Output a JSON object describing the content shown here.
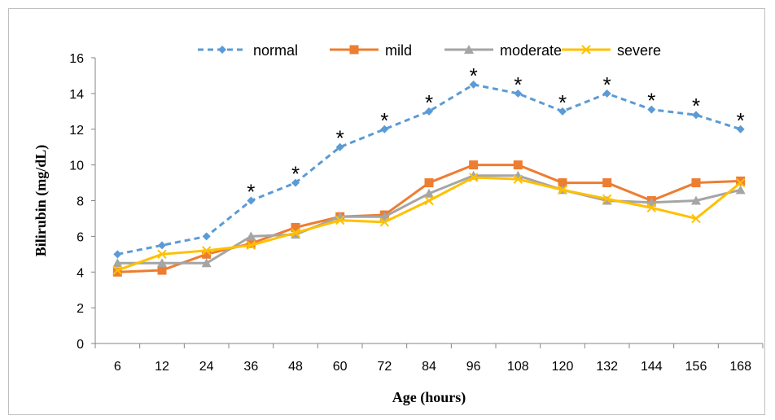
{
  "chart_data": {
    "type": "line",
    "x": [
      "6",
      "12",
      "24",
      "36",
      "48",
      "60",
      "72",
      "84",
      "96",
      "108",
      "120",
      "132",
      "144",
      "156",
      "168"
    ],
    "xlabel": "Age (hours)",
    "ylabel": "Bilirubin (mg/dL)",
    "ylim": [
      0,
      16
    ],
    "yticks": [
      0,
      2,
      4,
      6,
      8,
      10,
      12,
      14,
      16
    ],
    "grid": false,
    "legend_position": "top",
    "series": [
      {
        "name": "normal",
        "color": "#5b9bd5",
        "marker": "diamond",
        "dash": true,
        "values": [
          5.0,
          5.5,
          6.0,
          8.0,
          9.0,
          11.0,
          12.0,
          13.0,
          14.5,
          14.0,
          13.0,
          14.0,
          13.1,
          12.8,
          12.0
        ]
      },
      {
        "name": "mild",
        "color": "#ed7d31",
        "marker": "square",
        "dash": false,
        "values": [
          4.0,
          4.1,
          5.0,
          5.6,
          6.5,
          7.1,
          7.2,
          9.0,
          10.0,
          10.0,
          9.0,
          9.0,
          8.0,
          9.0,
          9.1
        ]
      },
      {
        "name": "moderate",
        "color": "#a5a5a5",
        "marker": "triangle",
        "dash": false,
        "values": [
          4.5,
          4.5,
          4.5,
          6.0,
          6.1,
          7.1,
          7.1,
          8.4,
          9.4,
          9.4,
          8.6,
          8.0,
          7.9,
          8.0,
          8.6
        ]
      },
      {
        "name": "severe",
        "color": "#ffc000",
        "marker": "x",
        "dash": false,
        "values": [
          4.1,
          5.0,
          5.2,
          5.5,
          6.2,
          6.9,
          6.8,
          8.0,
          9.3,
          9.2,
          8.6,
          8.1,
          7.6,
          7.0,
          9.0
        ]
      }
    ],
    "annotations": [
      {
        "text": "*",
        "x": "36"
      },
      {
        "text": "*",
        "x": "48"
      },
      {
        "text": "*",
        "x": "60"
      },
      {
        "text": "*",
        "x": "72"
      },
      {
        "text": "*",
        "x": "84"
      },
      {
        "text": "*",
        "x": "96"
      },
      {
        "text": "*",
        "x": "108"
      },
      {
        "text": "*",
        "x": "120"
      },
      {
        "text": "*",
        "x": "132"
      },
      {
        "text": "*",
        "x": "144"
      },
      {
        "text": "*",
        "x": "156"
      },
      {
        "text": "*",
        "x": "168"
      }
    ]
  }
}
